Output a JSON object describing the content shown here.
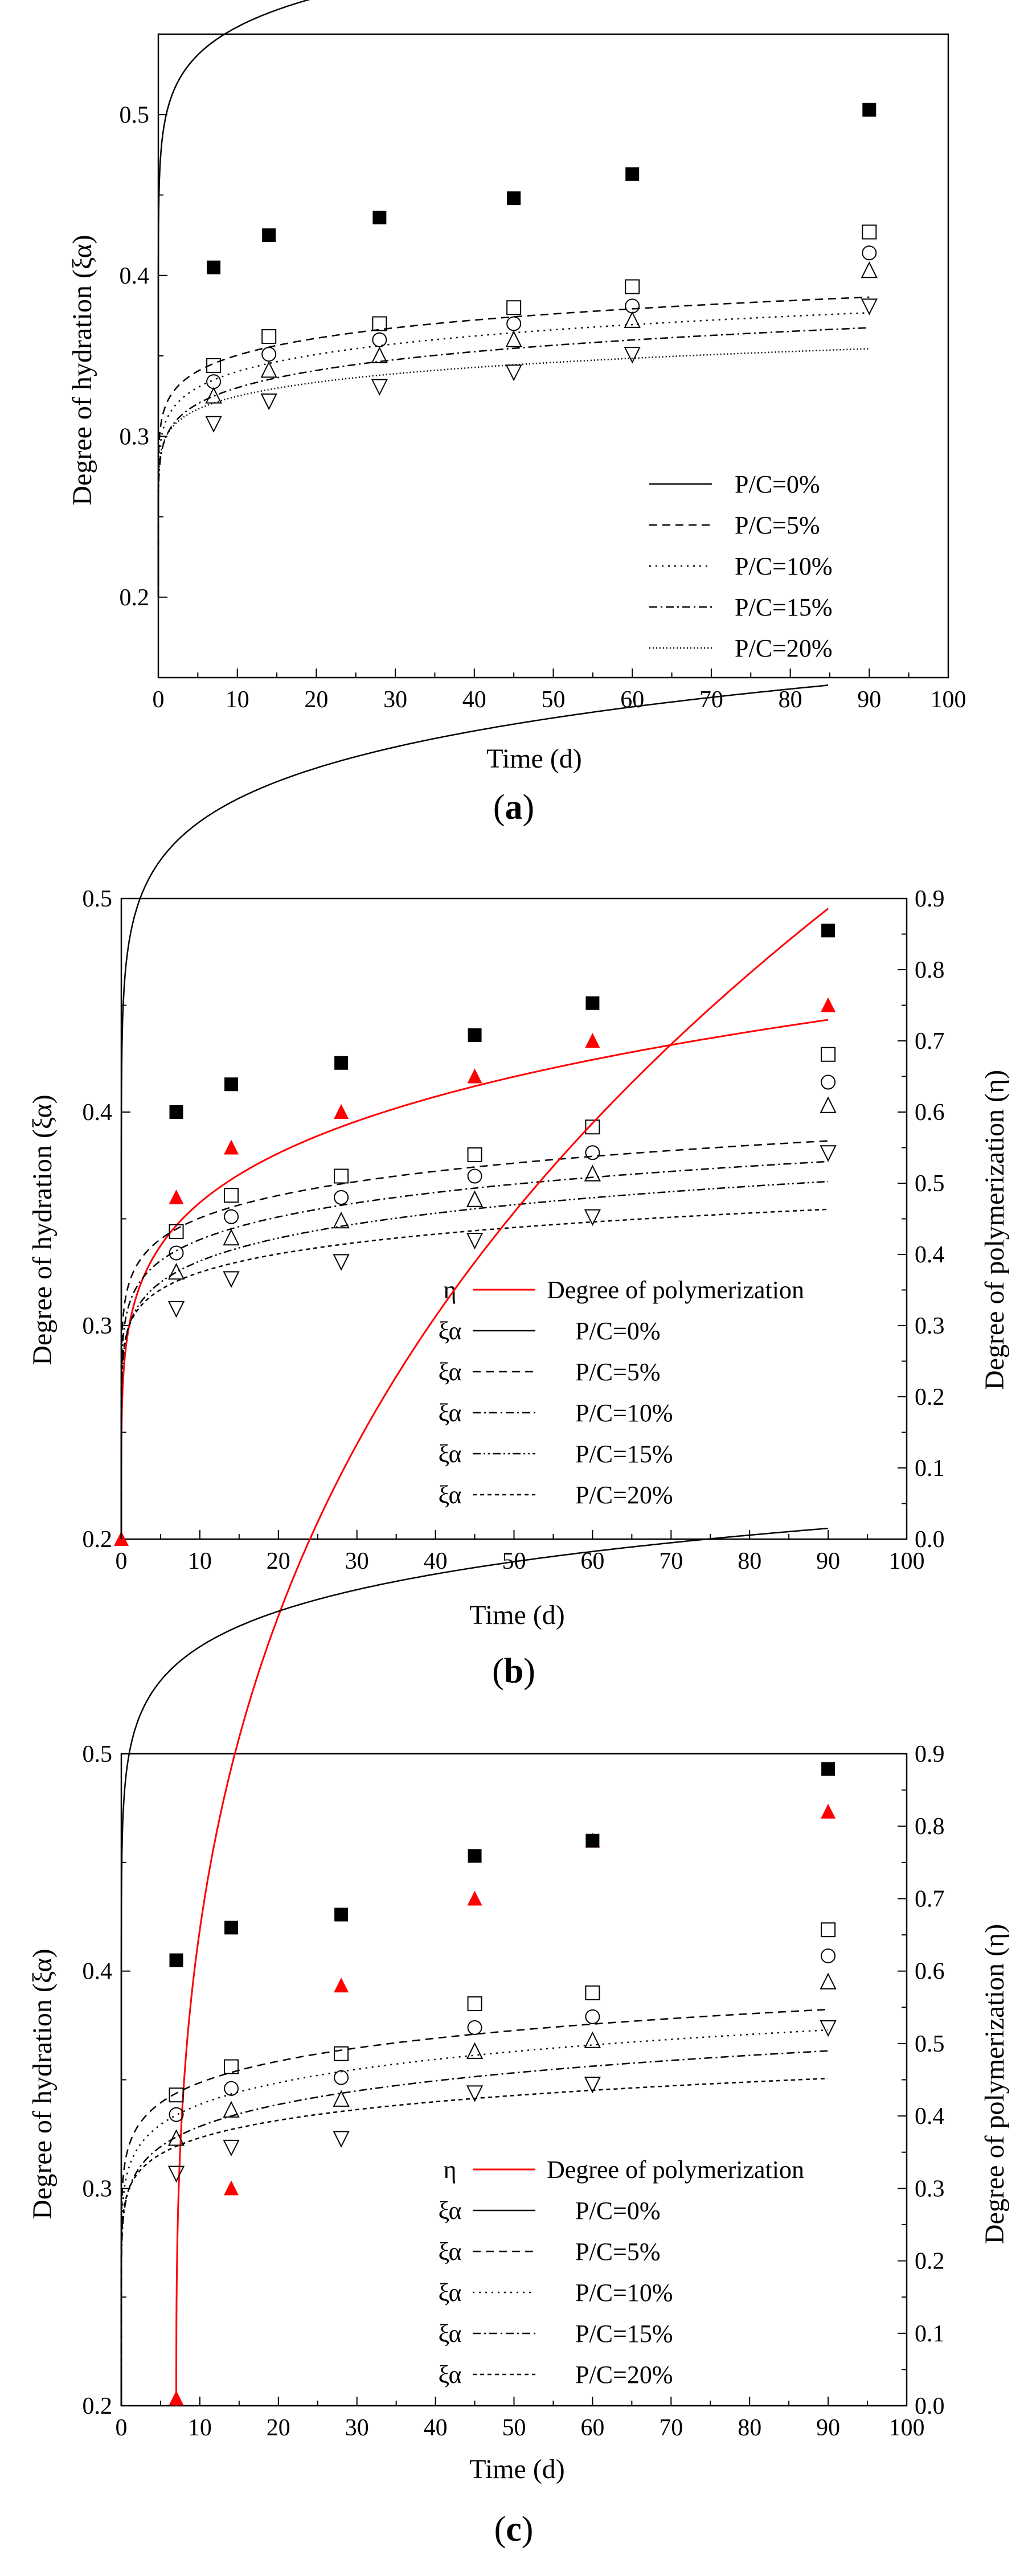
{
  "figure": {
    "captions": [
      "(a)",
      "(b)",
      "(c)"
    ]
  },
  "colors": {
    "axis": "#000000",
    "hydration_0": "#000000",
    "hydration_other": "#000000",
    "polymerization": "#ff0000"
  },
  "chart_data": [
    {
      "type": "scatter",
      "panel": "a",
      "caption": "(a)",
      "xlabel": "Time (d)",
      "ylabel": "Degree of hydration (ξα)",
      "xlim": [
        0,
        100
      ],
      "ylim": [
        0.15,
        0.55
      ],
      "xticks": [
        0,
        10,
        20,
        30,
        40,
        50,
        60,
        70,
        80,
        90,
        100
      ],
      "yticks": [
        0.2,
        0.3,
        0.4,
        0.5
      ],
      "yticklabels": [
        "0.2",
        "0.3",
        "0.4",
        "0.5"
      ],
      "legend_position": "bottom-right",
      "series": [
        {
          "name": "P/C=0%",
          "label": "P/C=0%",
          "marker": "filled-square",
          "line": "solid",
          "x": [
            7,
            14,
            28,
            45,
            60,
            90
          ],
          "y": [
            0.405,
            0.425,
            0.436,
            0.448,
            0.463,
            0.503
          ],
          "fit": [
            0.2,
            0.3,
            0.0725
          ]
        },
        {
          "name": "P/C=5%",
          "label": "P/C=5%",
          "marker": "open-square",
          "line": "dashed",
          "x": [
            7,
            14,
            28,
            45,
            60,
            90
          ],
          "y": [
            0.344,
            0.362,
            0.37,
            0.38,
            0.393,
            0.427
          ],
          "fit": [
            0.2,
            0.12,
            0.098
          ]
        },
        {
          "name": "P/C=10%",
          "label": "P/C=10%",
          "marker": "open-circle",
          "line": "dotted",
          "x": [
            7,
            14,
            28,
            45,
            60,
            90
          ],
          "y": [
            0.334,
            0.351,
            0.36,
            0.37,
            0.381,
            0.414
          ],
          "fit": [
            0.2,
            0.11,
            0.1055
          ]
        },
        {
          "name": "P/C=15%",
          "label": "P/C=15%",
          "marker": "open-triangle-up",
          "line": "dashdot",
          "x": [
            7,
            14,
            28,
            45,
            60,
            90
          ],
          "y": [
            0.325,
            0.341,
            0.35,
            0.36,
            0.372,
            0.403
          ],
          "fit": [
            0.2,
            0.1,
            0.1146
          ]
        },
        {
          "name": "P/C=20%",
          "label": "P/C=20%",
          "marker": "open-triangle-down",
          "line": "fine-dotted",
          "x": [
            7,
            14,
            28,
            45,
            60,
            90
          ],
          "y": [
            0.308,
            0.322,
            0.331,
            0.34,
            0.351,
            0.381
          ],
          "fit": [
            0.2,
            0.1,
            0.0966
          ]
        }
      ]
    },
    {
      "type": "scatter",
      "panel": "b",
      "caption": "(b)",
      "xlabel": "Time (d)",
      "ylabel": "Degree of hydration (ξα)",
      "y2label": "Degree of polymerization (η)",
      "xlim": [
        0,
        100
      ],
      "ylim": [
        0.2,
        0.5
      ],
      "y2lim": [
        0.0,
        0.9
      ],
      "xticks": [
        0,
        10,
        20,
        30,
        40,
        50,
        60,
        70,
        80,
        90,
        100
      ],
      "yticks": [
        0.2,
        0.3,
        0.4,
        0.5
      ],
      "yticklabels": [
        "0.2",
        "0.3",
        "0.4",
        "0.5"
      ],
      "y2ticks": [
        0.0,
        0.1,
        0.2,
        0.3,
        0.4,
        0.5,
        0.6,
        0.7,
        0.8,
        0.9
      ],
      "y2ticklabels": [
        "0.0",
        "0.1",
        "0.2",
        "0.3",
        "0.4",
        "0.5",
        "0.6",
        "0.7",
        "0.8",
        "0.9"
      ],
      "legend_position": "bottom-right",
      "series": [
        {
          "name": "Degree of polymerization",
          "symbol": "η",
          "label": "Degree of polymerization",
          "marker": "red-filled-triangle",
          "line": "red-solid",
          "axis": "right",
          "x": [
            0,
            7,
            14,
            28,
            45,
            60,
            90
          ],
          "y": [
            0.0,
            0.48,
            0.55,
            0.6,
            0.65,
            0.7,
            0.75
          ],
          "fit": [
            0.0,
            0.3,
            0.1975
          ]
        },
        {
          "name": "P/C=0%",
          "symbol": "ξα",
          "label": "P/C=0%",
          "marker": "filled-square",
          "line": "solid",
          "axis": "left",
          "x": [
            7,
            14,
            28,
            45,
            60,
            90
          ],
          "y": [
            0.4,
            0.413,
            0.423,
            0.436,
            0.451,
            0.485
          ],
          "fit": [
            0.2,
            0.28,
            0.0792
          ]
        },
        {
          "name": "P/C=5%",
          "symbol": "ξα",
          "label": "P/C=5%",
          "marker": "open-square",
          "line": "dashed",
          "axis": "left",
          "x": [
            7,
            14,
            28,
            45,
            60,
            90
          ],
          "y": [
            0.344,
            0.361,
            0.37,
            0.38,
            0.393,
            0.427
          ],
          "fit": [
            0.2,
            0.12,
            0.098
          ]
        },
        {
          "name": "P/C=10%",
          "symbol": "ξα",
          "label": "P/C=10%",
          "marker": "open-circle",
          "line": "dashdot",
          "axis": "left",
          "x": [
            7,
            14,
            28,
            45,
            60,
            90
          ],
          "y": [
            0.334,
            0.351,
            0.36,
            0.37,
            0.381,
            0.414
          ],
          "fit": [
            0.2,
            0.11,
            0.1055
          ]
        },
        {
          "name": "P/C=15%",
          "symbol": "ξα",
          "label": "P/C=15%",
          "marker": "open-triangle-up",
          "line": "dashdotdot",
          "axis": "left",
          "x": [
            7,
            14,
            28,
            45,
            60,
            90
          ],
          "y": [
            0.325,
            0.341,
            0.349,
            0.359,
            0.371,
            0.403
          ],
          "fit": [
            0.2,
            0.1,
            0.1146
          ]
        },
        {
          "name": "P/C=20%",
          "symbol": "ξα",
          "label": "P/C=20%",
          "marker": "open-triangle-down",
          "line": "short-dashed",
          "axis": "left",
          "x": [
            7,
            14,
            28,
            45,
            60,
            90
          ],
          "y": [
            0.308,
            0.322,
            0.33,
            0.34,
            0.351,
            0.381
          ],
          "fit": [
            0.2,
            0.1,
            0.0966
          ]
        }
      ]
    },
    {
      "type": "scatter",
      "panel": "c",
      "caption": "(c)",
      "xlabel": "Time (d)",
      "ylabel": "Degree of hydration (ξα)",
      "y2label": "Degree of polymerization (η)",
      "xlim": [
        0,
        100
      ],
      "ylim": [
        0.2,
        0.5
      ],
      "y2lim": [
        0.0,
        0.9
      ],
      "xticks": [
        0,
        10,
        20,
        30,
        40,
        50,
        60,
        70,
        80,
        90,
        100
      ],
      "yticks": [
        0.2,
        0.3,
        0.4,
        0.5
      ],
      "yticklabels": [
        "0.2",
        "0.3",
        "0.4",
        "0.5"
      ],
      "y2ticks": [
        0.0,
        0.1,
        0.2,
        0.3,
        0.4,
        0.5,
        0.6,
        0.7,
        0.8,
        0.9
      ],
      "y2ticklabels": [
        "0.0",
        "0.1",
        "0.2",
        "0.3",
        "0.4",
        "0.5",
        "0.6",
        "0.7",
        "0.8",
        "0.9"
      ],
      "legend_position": "bottom-right",
      "series": [
        {
          "name": "Degree of polymerization",
          "symbol": "η",
          "label": "Degree of polymerization",
          "marker": "red-filled-triangle",
          "line": "red-solid",
          "axis": "right",
          "x": [
            7,
            14,
            28,
            45,
            60,
            90
          ],
          "y": [
            0.01,
            0.3,
            0.58,
            0.7,
            0.78,
            0.82
          ],
          "fit_x0": 7,
          "fit": [
            0.0,
            0.45,
            0.345
          ]
        },
        {
          "name": "P/C=0%",
          "symbol": "ξα",
          "label": "P/C=0%",
          "marker": "filled-square",
          "line": "solid",
          "axis": "left",
          "x": [
            7,
            14,
            28,
            45,
            60,
            90
          ],
          "y": [
            0.405,
            0.42,
            0.426,
            0.453,
            0.46,
            0.493
          ],
          "fit": [
            0.2,
            0.3,
            0.066
          ]
        },
        {
          "name": "P/C=5%",
          "symbol": "ξα",
          "label": "P/C=5%",
          "marker": "open-square",
          "line": "dashed",
          "axis": "left",
          "x": [
            7,
            14,
            28,
            45,
            60,
            90
          ],
          "y": [
            0.343,
            0.356,
            0.362,
            0.385,
            0.39,
            0.419
          ],
          "fit": [
            0.2,
            0.12,
            0.093
          ]
        },
        {
          "name": "P/C=10%",
          "symbol": "ξα",
          "label": "P/C=10%",
          "marker": "open-circle",
          "line": "dotted",
          "axis": "left",
          "x": [
            7,
            14,
            28,
            45,
            60,
            90
          ],
          "y": [
            0.334,
            0.346,
            0.351,
            0.374,
            0.379,
            0.407
          ],
          "fit": [
            0.2,
            0.11,
            0.1005
          ]
        },
        {
          "name": "P/C=15%",
          "symbol": "ξα",
          "label": "P/C=15%",
          "marker": "open-triangle-up",
          "line": "dashdot",
          "axis": "left",
          "x": [
            7,
            14,
            28,
            45,
            60,
            90
          ],
          "y": [
            0.323,
            0.336,
            0.341,
            0.363,
            0.368,
            0.395
          ],
          "fit": [
            0.2,
            0.1,
            0.109
          ]
        },
        {
          "name": "P/C=20%",
          "symbol": "ξα",
          "label": "P/C=20%",
          "marker": "open-triangle-down",
          "line": "short-dashed",
          "axis": "left",
          "x": [
            7,
            14,
            28,
            45,
            60,
            90
          ],
          "y": [
            0.307,
            0.319,
            0.323,
            0.344,
            0.348,
            0.374
          ],
          "fit": [
            0.2,
            0.1,
            0.091
          ]
        }
      ]
    }
  ]
}
